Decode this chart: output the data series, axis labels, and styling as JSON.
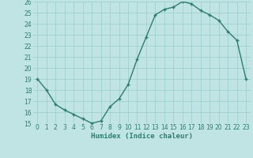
{
  "x": [
    0,
    1,
    2,
    3,
    4,
    5,
    6,
    7,
    8,
    9,
    10,
    11,
    12,
    13,
    14,
    15,
    16,
    17,
    18,
    19,
    20,
    21,
    22,
    23
  ],
  "y": [
    19,
    18,
    16.7,
    16.2,
    15.8,
    15.4,
    15.0,
    15.2,
    16.5,
    17.2,
    18.5,
    20.8,
    22.8,
    24.8,
    25.3,
    25.5,
    26.0,
    25.8,
    25.2,
    24.8,
    24.3,
    23.3,
    22.5,
    19.0
  ],
  "xlabel": "Humidex (Indice chaleur)",
  "ylim": [
    15,
    26
  ],
  "xlim": [
    -0.5,
    23.5
  ],
  "yticks": [
    15,
    16,
    17,
    18,
    19,
    20,
    21,
    22,
    23,
    24,
    25,
    26
  ],
  "xticks": [
    0,
    1,
    2,
    3,
    4,
    5,
    6,
    7,
    8,
    9,
    10,
    11,
    12,
    13,
    14,
    15,
    16,
    17,
    18,
    19,
    20,
    21,
    22,
    23
  ],
  "line_color": "#2e7d6e",
  "marker": "+",
  "bg_color": "#c0e4e4",
  "grid_color": "#99cccc",
  "label_fontsize": 6.5,
  "tick_fontsize": 5.5,
  "linewidth": 1.0,
  "markersize": 3,
  "markeredgewidth": 1.0
}
